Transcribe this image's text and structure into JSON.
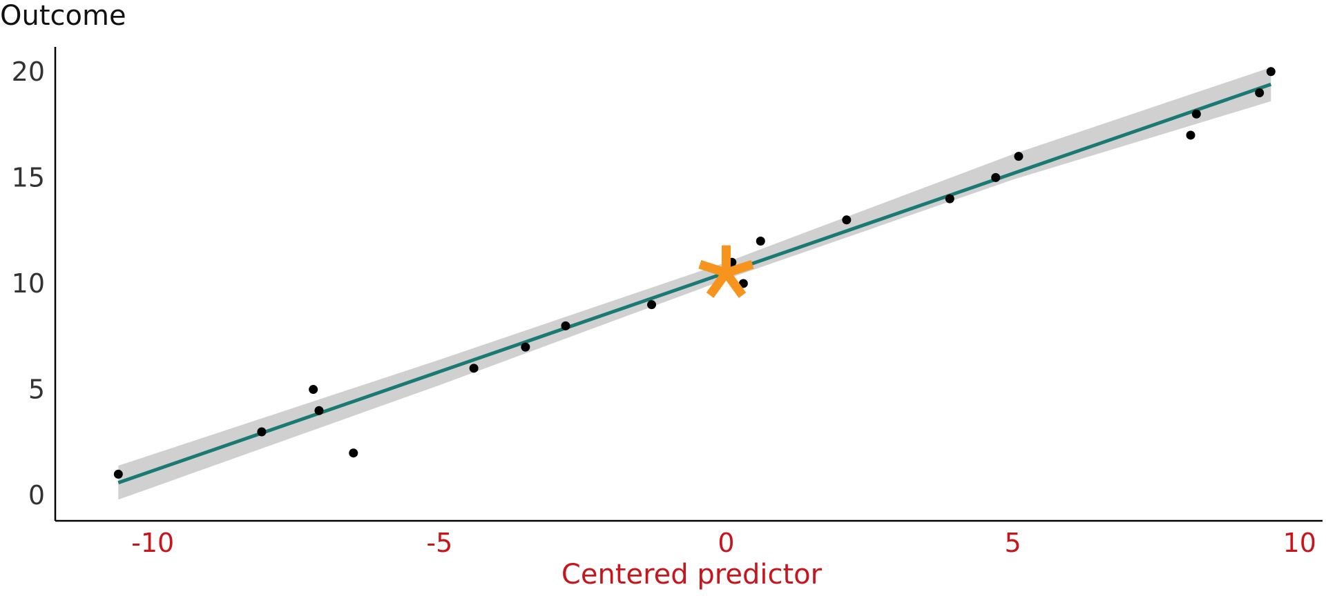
{
  "chart_data": {
    "type": "scatter",
    "title": "",
    "ylabel": "Outcome",
    "xlabel": "Centered predictor",
    "xlim": [
      -11.7,
      10.4
    ],
    "ylim": [
      -1.2,
      21.1
    ],
    "xticks": [
      -10,
      -5,
      0,
      5,
      10
    ],
    "xtick_labels": [
      "-10",
      "-5",
      "0",
      "5",
      "10"
    ],
    "yticks": [
      0,
      5,
      10,
      15,
      20
    ],
    "ytick_labels": [
      "0",
      "5",
      "10",
      "15",
      "20"
    ],
    "grid": false,
    "points": [
      {
        "x": -10.6,
        "y": 1
      },
      {
        "x": -8.1,
        "y": 3
      },
      {
        "x": -7.2,
        "y": 5
      },
      {
        "x": -7.1,
        "y": 4
      },
      {
        "x": -6.5,
        "y": 2
      },
      {
        "x": -4.4,
        "y": 6
      },
      {
        "x": -3.5,
        "y": 7
      },
      {
        "x": -2.8,
        "y": 8
      },
      {
        "x": -1.3,
        "y": 9
      },
      {
        "x": 0.1,
        "y": 11
      },
      {
        "x": 0.3,
        "y": 10
      },
      {
        "x": 0.6,
        "y": 12
      },
      {
        "x": 2.1,
        "y": 13
      },
      {
        "x": 3.9,
        "y": 14
      },
      {
        "x": 4.7,
        "y": 15
      },
      {
        "x": 5.1,
        "y": 16
      },
      {
        "x": 8.1,
        "y": 17
      },
      {
        "x": 8.2,
        "y": 18
      },
      {
        "x": 9.3,
        "y": 19
      },
      {
        "x": 9.5,
        "y": 20
      }
    ],
    "fit_line": {
      "x": [
        -10.6,
        9.5
      ],
      "y": [
        0.6,
        19.4
      ]
    },
    "confidence_band": {
      "x": [
        -10.6,
        -5,
        0,
        5,
        9.5
      ],
      "lower": [
        -0.2,
        5.2,
        10.2,
        14.9,
        18.6
      ],
      "upper": [
        1.4,
        6.4,
        11.0,
        16.1,
        20.2
      ]
    },
    "marker": {
      "x": 0,
      "y": 10.5,
      "symbol": "*"
    },
    "colors": {
      "points": "#000000",
      "line": "#1a7a73",
      "band": "#d0d0d0",
      "marker": "#f7941d",
      "x_tick_text": "#c8151b",
      "x_title_text": "#c8151b",
      "y_tick_text": "#333333",
      "y_title_text": "#111111",
      "axis": "#000000"
    }
  }
}
